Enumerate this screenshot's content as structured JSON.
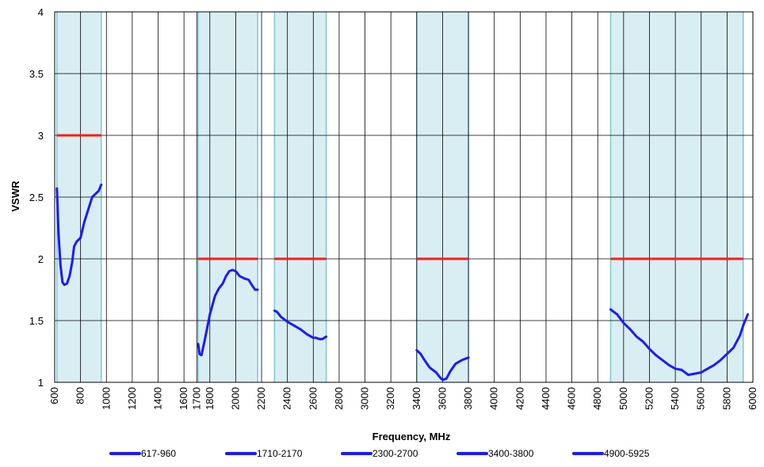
{
  "chart_data": {
    "type": "line",
    "title": "",
    "xlabel": "Frequency, MHz",
    "ylabel": "VSWR",
    "xlim": [
      600,
      6000
    ],
    "ylim": [
      1,
      4
    ],
    "x_ticks": [
      "600",
      "800",
      "1000",
      "1200",
      "1400",
      "1600",
      "1700",
      "1800",
      "2000",
      "2200",
      "2400",
      "2600",
      "2800",
      "3000",
      "3200",
      "3400",
      "3600",
      "3800",
      "4000",
      "4200",
      "4400",
      "4600",
      "4800",
      "5000",
      "5200",
      "5400",
      "5600",
      "5800",
      "6000"
    ],
    "y_ticks": [
      "1",
      "1.5",
      "2",
      "2.5",
      "3",
      "3.5",
      "4"
    ],
    "grid": true,
    "legend_position": "bottom",
    "colors": {
      "series": "#1a1aff",
      "limit": "#ff1a1a",
      "band_fill": "#d9eef3",
      "band_edge": "#7fc6d6",
      "grid": "#000000"
    },
    "bands": [
      {
        "range": [
          617,
          960
        ]
      },
      {
        "range": [
          1710,
          2170
        ]
      },
      {
        "range": [
          2300,
          2700
        ]
      },
      {
        "range": [
          3400,
          3800
        ]
      },
      {
        "range": [
          4900,
          5925
        ]
      }
    ],
    "limits": [
      {
        "x": [
          617,
          960
        ],
        "y": 3
      },
      {
        "x": [
          1710,
          2170
        ],
        "y": 2
      },
      {
        "x": [
          2300,
          2700
        ],
        "y": 2
      },
      {
        "x": [
          3400,
          3800
        ],
        "y": 2
      },
      {
        "x": [
          4900,
          5925
        ],
        "y": 2
      }
    ],
    "series": [
      {
        "name": "617-960",
        "points": [
          [
            617,
            2.57
          ],
          [
            630,
            2.2
          ],
          [
            645,
            1.95
          ],
          [
            660,
            1.81
          ],
          [
            675,
            1.79
          ],
          [
            695,
            1.8
          ],
          [
            715,
            1.86
          ],
          [
            735,
            1.97
          ],
          [
            750,
            2.1
          ],
          [
            770,
            2.14
          ],
          [
            800,
            2.17
          ],
          [
            830,
            2.3
          ],
          [
            860,
            2.4
          ],
          [
            890,
            2.5
          ],
          [
            920,
            2.53
          ],
          [
            940,
            2.55
          ],
          [
            960,
            2.6
          ]
        ]
      },
      {
        "name": "1710-2170",
        "points": [
          [
            1710,
            1.31
          ],
          [
            1720,
            1.23
          ],
          [
            1735,
            1.22
          ],
          [
            1760,
            1.34
          ],
          [
            1800,
            1.55
          ],
          [
            1840,
            1.7
          ],
          [
            1870,
            1.76
          ],
          [
            1900,
            1.8
          ],
          [
            1925,
            1.86
          ],
          [
            1950,
            1.9
          ],
          [
            1975,
            1.91
          ],
          [
            2000,
            1.9
          ],
          [
            2030,
            1.86
          ],
          [
            2070,
            1.84
          ],
          [
            2100,
            1.83
          ],
          [
            2130,
            1.78
          ],
          [
            2150,
            1.75
          ],
          [
            2170,
            1.75
          ]
        ]
      },
      {
        "name": "2300-2700",
        "points": [
          [
            2300,
            1.58
          ],
          [
            2320,
            1.57
          ],
          [
            2350,
            1.53
          ],
          [
            2400,
            1.49
          ],
          [
            2450,
            1.46
          ],
          [
            2500,
            1.43
          ],
          [
            2550,
            1.39
          ],
          [
            2600,
            1.36
          ],
          [
            2620,
            1.36
          ],
          [
            2650,
            1.35
          ],
          [
            2670,
            1.35
          ],
          [
            2700,
            1.37
          ]
        ]
      },
      {
        "name": "3400-3800",
        "points": [
          [
            3400,
            1.26
          ],
          [
            3430,
            1.23
          ],
          [
            3460,
            1.18
          ],
          [
            3500,
            1.12
          ],
          [
            3550,
            1.08
          ],
          [
            3580,
            1.04
          ],
          [
            3600,
            1.02
          ],
          [
            3630,
            1.03
          ],
          [
            3660,
            1.09
          ],
          [
            3700,
            1.15
          ],
          [
            3750,
            1.18
          ],
          [
            3800,
            1.2
          ]
        ]
      },
      {
        "name": "4900-5925",
        "points": [
          [
            4900,
            1.59
          ],
          [
            4950,
            1.55
          ],
          [
            5000,
            1.48
          ],
          [
            5050,
            1.43
          ],
          [
            5100,
            1.37
          ],
          [
            5150,
            1.33
          ],
          [
            5200,
            1.27
          ],
          [
            5250,
            1.22
          ],
          [
            5300,
            1.18
          ],
          [
            5350,
            1.14
          ],
          [
            5400,
            1.11
          ],
          [
            5450,
            1.1
          ],
          [
            5500,
            1.06
          ],
          [
            5550,
            1.07
          ],
          [
            5600,
            1.08
          ],
          [
            5650,
            1.11
          ],
          [
            5700,
            1.14
          ],
          [
            5750,
            1.18
          ],
          [
            5800,
            1.23
          ],
          [
            5850,
            1.28
          ],
          [
            5900,
            1.38
          ],
          [
            5925,
            1.46
          ],
          [
            5960,
            1.55
          ]
        ]
      }
    ]
  }
}
